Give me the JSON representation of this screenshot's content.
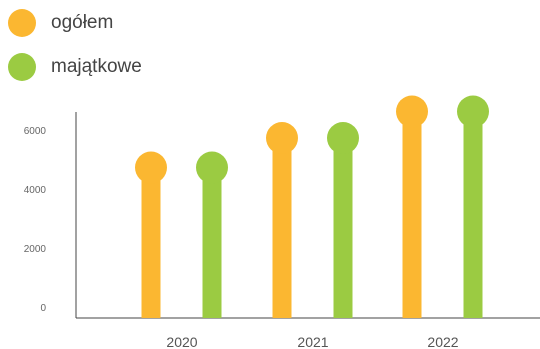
{
  "chart_data": {
    "type": "bar",
    "style": "lollipop",
    "categories": [
      "2020",
      "2021",
      "2022"
    ],
    "series": [
      {
        "name": "ogółem",
        "color": "#FBB731",
        "values": [
          5100,
          6100,
          7000
        ]
      },
      {
        "name": "majątkowe",
        "color": "#9BCB42",
        "values": [
          5100,
          6100,
          7000
        ]
      }
    ],
    "yticks": [
      0,
      2000,
      4000,
      6000
    ],
    "ylim": [
      0,
      7500
    ],
    "legend_position": "top-left",
    "grid": false
  }
}
